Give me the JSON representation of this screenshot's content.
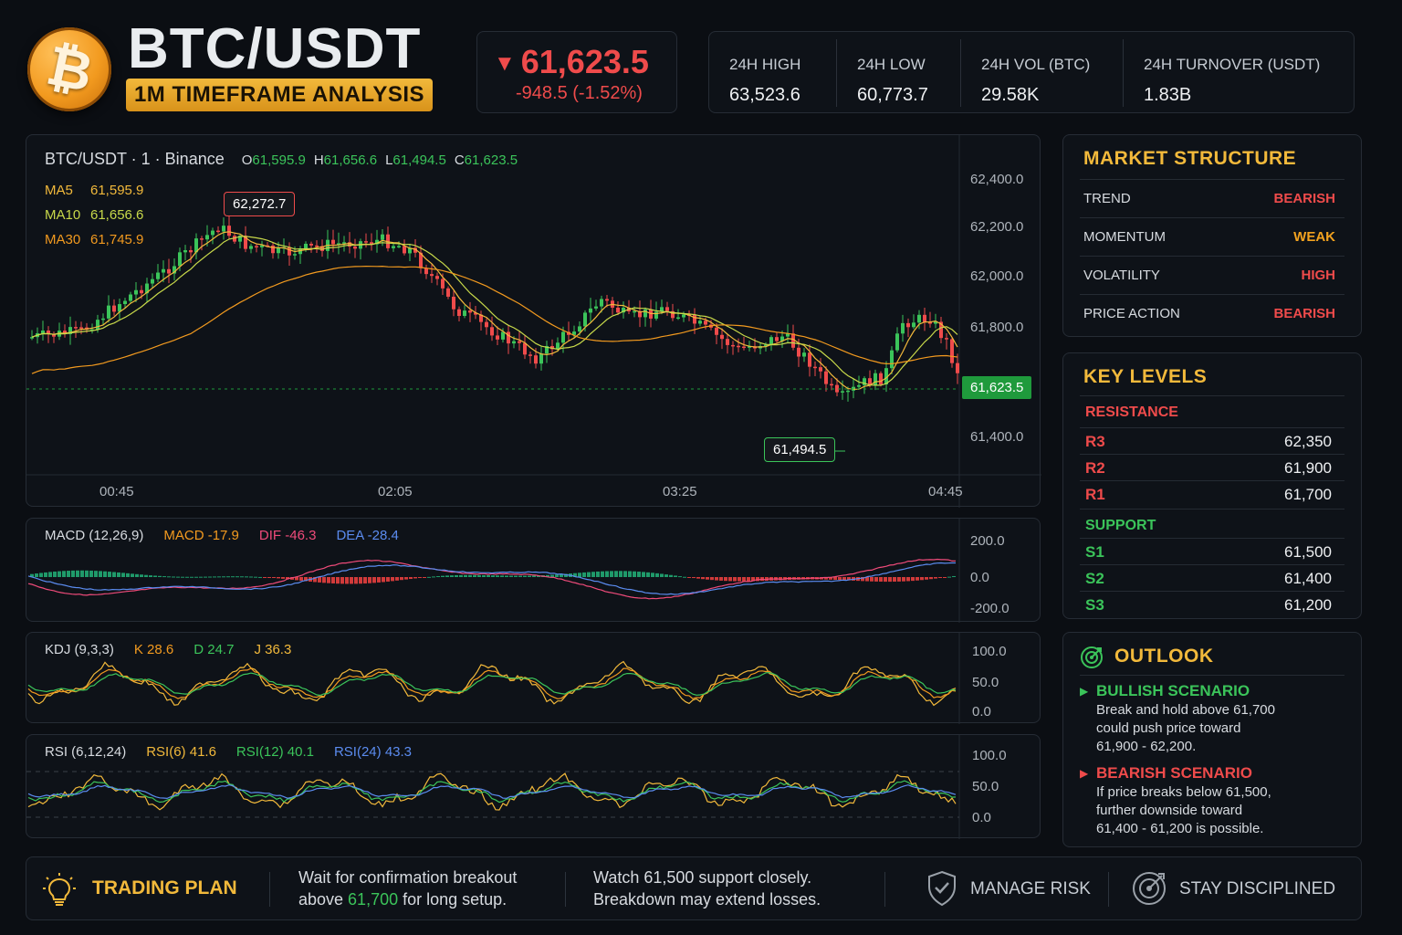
{
  "header": {
    "logo_glyph": "₿",
    "pair": "BTC/USDT",
    "timeframe_badge": "1M TIMEFRAME ANALYSIS",
    "price": "61,623.5",
    "price_arrow": "▼",
    "price_change": "-948.5 (-1.52%)",
    "stats": [
      {
        "label": "24H HIGH",
        "value": "63,523.6"
      },
      {
        "label": "24H LOW",
        "value": "60,773.7"
      },
      {
        "label": "24H VOL (BTC)",
        "value": "29.58K"
      },
      {
        "label": "24H TURNOVER (USDT)",
        "value": "1.83B"
      }
    ]
  },
  "colors": {
    "up": "#3bc45a",
    "down": "#ef4b4b",
    "accent": "#f2b93b",
    "ma5": "#f2b93b",
    "ma10": "#c8d94a",
    "ma30": "#f29a1f"
  },
  "main_chart": {
    "symbol_line": "BTC/USDT · 1 · Binance",
    "ohlc": {
      "o_label": "O",
      "o": "61,595.9",
      "h_label": "H",
      "h": "61,656.6",
      "l_label": "L",
      "l": "61,494.5",
      "c_label": "C",
      "c": "61,623.5"
    },
    "ma": [
      {
        "label": "MA5",
        "value": "61,595.9"
      },
      {
        "label": "MA10",
        "value": "61,656.6"
      },
      {
        "label": "MA30",
        "value": "61,745.9"
      }
    ],
    "y_ticks": [
      "62,400.0",
      "62,200.0",
      "62,000.0",
      "61,800.0",
      "61,400.0"
    ],
    "x_ticks": [
      "00:45",
      "02:05",
      "03:25",
      "04:45"
    ],
    "high_tag": "62,272.7",
    "low_tag": "61,494.5",
    "last_tag": "61,623.5"
  },
  "macd": {
    "title": "MACD (12,26,9)",
    "macd": "MACD -17.9",
    "dif": "DIF -46.3",
    "dea": "DEA -28.4",
    "y_ticks": [
      "200.0",
      "0.0",
      "-200.0"
    ]
  },
  "kdj": {
    "title": "KDJ (9,3,3)",
    "k": "K 28.6",
    "d": "D 24.7",
    "j": "J 36.3",
    "y_ticks": [
      "100.0",
      "50.0",
      "0.0"
    ]
  },
  "rsi": {
    "title": "RSI (6,12,24)",
    "r6": "RSI(6) 41.6",
    "r12": "RSI(12) 40.1",
    "r24": "RSI(24) 43.3",
    "y_ticks": [
      "100.0",
      "50.0",
      "0.0"
    ]
  },
  "market_structure": {
    "title": "MARKET STRUCTURE",
    "rows": [
      {
        "key": "TREND",
        "value": "BEARISH"
      },
      {
        "key": "MOMENTUM",
        "value": "WEAK"
      },
      {
        "key": "VOLATILITY",
        "value": "HIGH"
      },
      {
        "key": "PRICE ACTION",
        "value": "BEARISH"
      }
    ]
  },
  "key_levels": {
    "title": "KEY LEVELS",
    "resistance_label": "RESISTANCE",
    "resistance": [
      {
        "key": "R3",
        "value": "62,350"
      },
      {
        "key": "R2",
        "value": "61,900"
      },
      {
        "key": "R1",
        "value": "61,700"
      }
    ],
    "support_label": "SUPPORT",
    "support": [
      {
        "key": "S1",
        "value": "61,500"
      },
      {
        "key": "S2",
        "value": "61,400"
      },
      {
        "key": "S3",
        "value": "61,200"
      }
    ]
  },
  "outlook": {
    "title": "OUTLOOK",
    "bullish_title": "BULLISH SCENARIO",
    "bullish_lines": [
      "Break and hold above 61,700",
      "could push price toward",
      "61,900 - 62,200."
    ],
    "bearish_title": "BEARISH SCENARIO",
    "bearish_lines": [
      "If price breaks below 61,500,",
      "further downside toward",
      "61,400 - 61,200 is possible."
    ]
  },
  "trading_plan": {
    "title": "TRADING PLAN",
    "tip1_line1": "Wait for confirmation breakout",
    "tip1_line2_pre": "above ",
    "tip1_line2_value": "61,700",
    "tip1_line2_post": " for long setup.",
    "tip2_line1": "Watch 61,500 support closely.",
    "tip2_line2": "Breakdown may extend losses.",
    "manage_risk": "MANAGE RISK",
    "stay_disciplined": "STAY DISCIPLINED"
  }
}
